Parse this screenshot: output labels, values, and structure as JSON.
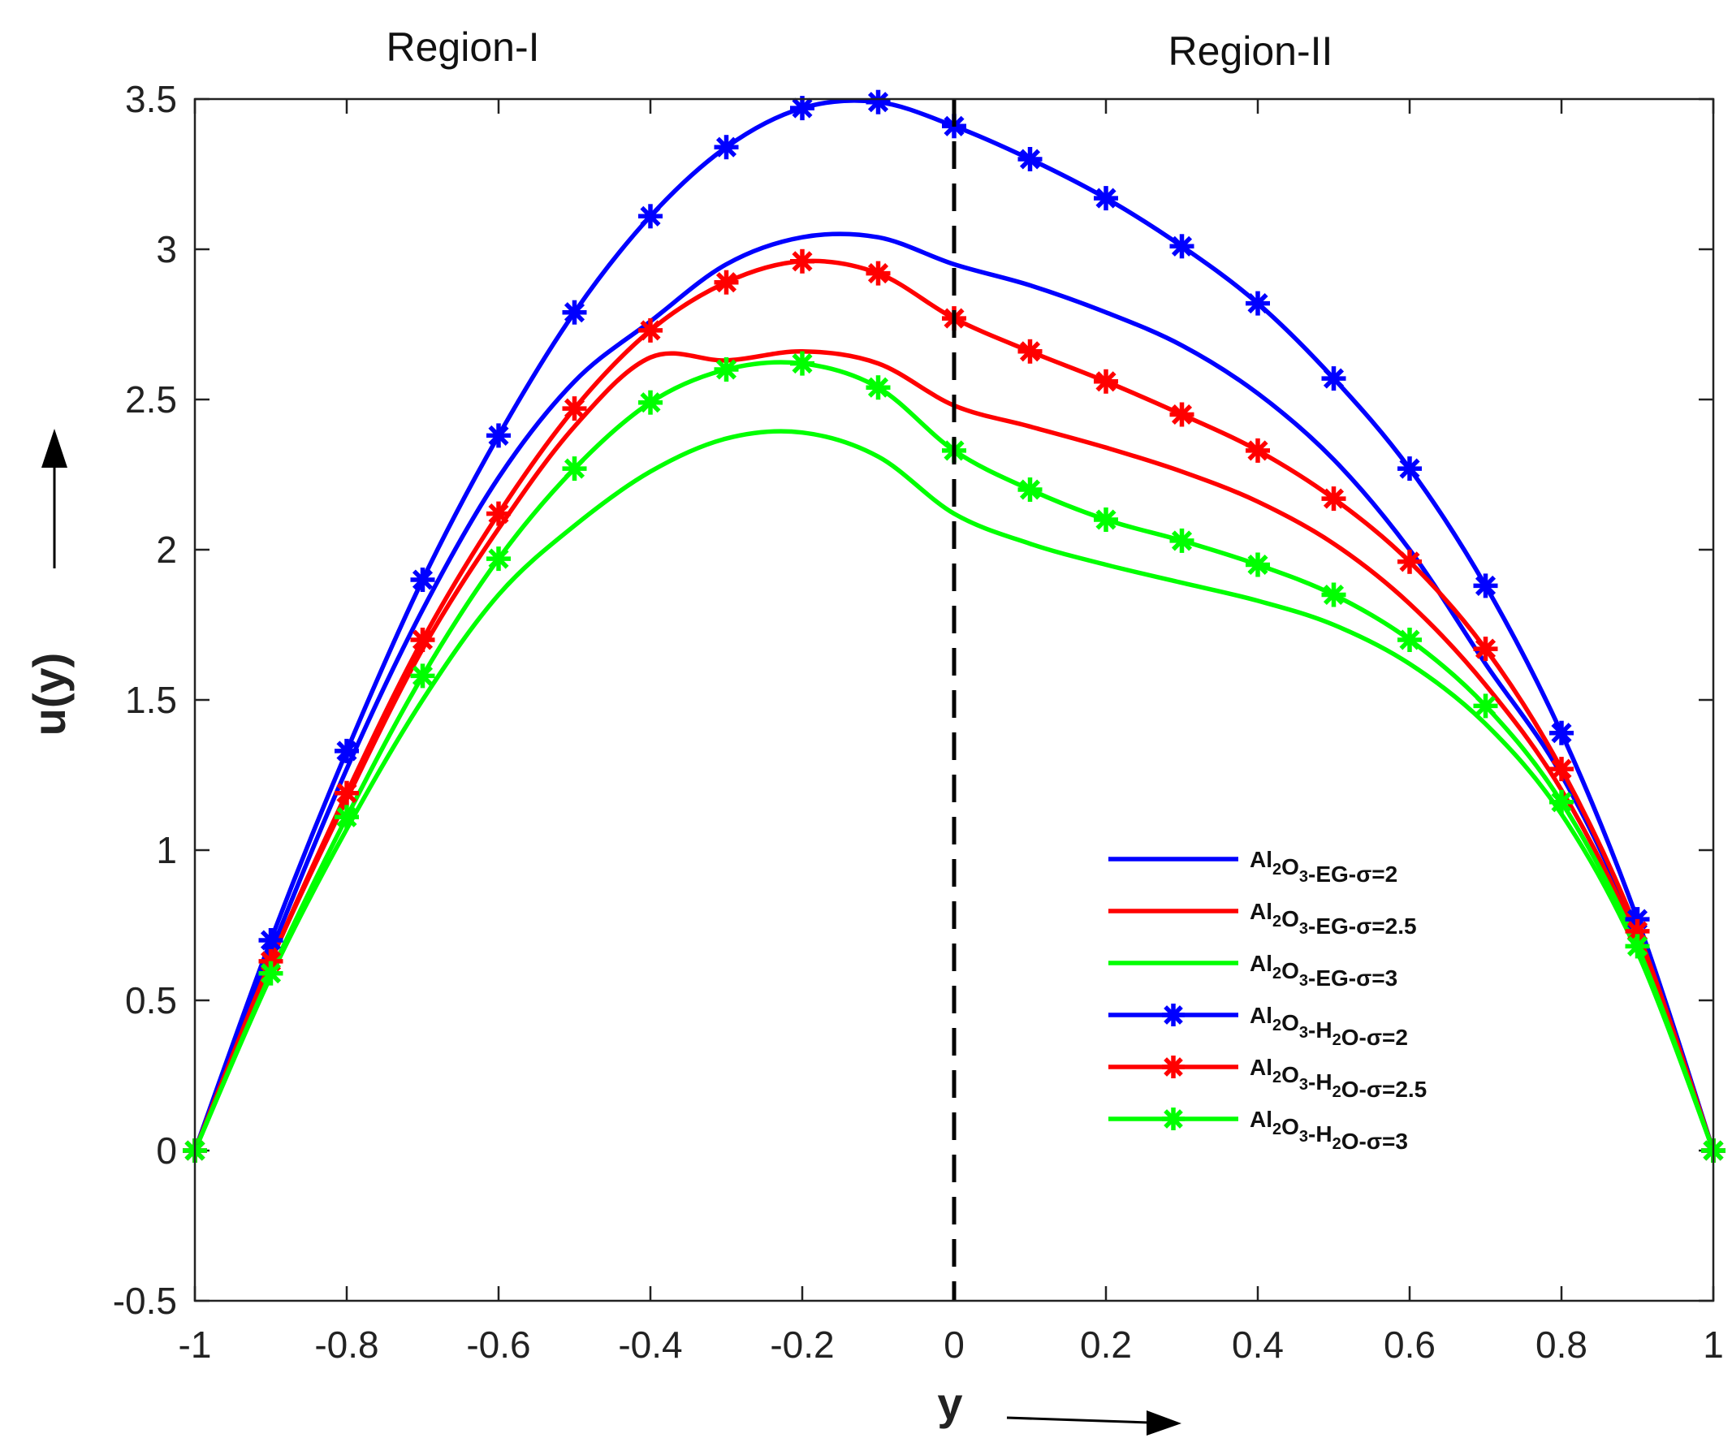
{
  "chart_data": {
    "type": "line",
    "xlabel": "y",
    "ylabel": "u(y)",
    "xlim": [
      -1,
      1
    ],
    "ylim": [
      -0.5,
      3.5
    ],
    "xticks": [
      -1,
      -0.8,
      -0.6,
      -0.4,
      -0.2,
      0,
      0.2,
      0.4,
      0.6,
      0.8,
      1
    ],
    "xtick_labels": [
      "-1",
      "-0.8",
      "-0.6",
      "-0.4",
      "-0.2",
      "0",
      "0.2",
      "0.4",
      "0.6",
      "0.8",
      "1"
    ],
    "yticks": [
      -0.5,
      0,
      0.5,
      1,
      1.5,
      2,
      2.5,
      3,
      3.5
    ],
    "ytick_labels": [
      "-0.5",
      "0",
      "0.5",
      "1",
      "1.5",
      "2",
      "2.5",
      "3",
      "3.5"
    ],
    "annotations": {
      "region_1": "Region-I",
      "region_2": "Region-II"
    },
    "interface_x": 0,
    "x": [
      -1,
      -0.9,
      -0.8,
      -0.7,
      -0.6,
      -0.5,
      -0.4,
      -0.3,
      -0.2,
      -0.1,
      0,
      0.1,
      0.2,
      0.3,
      0.4,
      0.5,
      0.6,
      0.7,
      0.8,
      0.9,
      1
    ],
    "series": [
      {
        "name": "Al2O3-EG-σ=2",
        "legend_parts": [
          "Al",
          "2",
          "O",
          "3",
          "-EG-",
          "σ",
          "=2"
        ],
        "color": "#0000ff",
        "marker": "none",
        "values": [
          0,
          0.66,
          1.27,
          1.8,
          2.24,
          2.56,
          2.76,
          2.95,
          3.04,
          3.04,
          2.95,
          2.88,
          2.79,
          2.68,
          2.52,
          2.3,
          2.0,
          1.62,
          1.25,
          0.72,
          0
        ]
      },
      {
        "name": "Al2O3-EG-σ=2.5",
        "legend_parts": [
          "Al",
          "2",
          "O",
          "3",
          "-EG-",
          "σ",
          "=2.5"
        ],
        "color": "#ff0000",
        "marker": "none",
        "values": [
          0,
          0.63,
          1.17,
          1.67,
          2.07,
          2.41,
          2.64,
          2.63,
          2.66,
          2.62,
          2.48,
          2.41,
          2.34,
          2.26,
          2.16,
          2.02,
          1.82,
          1.55,
          1.2,
          0.7,
          0
        ]
      },
      {
        "name": "Al2O3-EG-σ=3",
        "legend_parts": [
          "Al",
          "2",
          "O",
          "3",
          "-EG-",
          "σ",
          "=3"
        ],
        "color": "#00ff00",
        "marker": "none",
        "values": [
          0,
          0.58,
          1.07,
          1.5,
          1.85,
          2.08,
          2.26,
          2.37,
          2.39,
          2.31,
          2.12,
          2.02,
          1.95,
          1.89,
          1.83,
          1.75,
          1.62,
          1.42,
          1.12,
          0.66,
          0
        ]
      },
      {
        "name": "Al2O3-H2O-σ=2",
        "legend_parts": [
          "Al",
          "2",
          "O",
          "3",
          "-H",
          "2",
          "O-",
          "σ",
          "=2"
        ],
        "color": "#0000ff",
        "marker": "asterisk",
        "values": [
          0,
          0.7,
          1.33,
          1.9,
          2.38,
          2.79,
          3.11,
          3.34,
          3.47,
          3.49,
          3.41,
          3.3,
          3.17,
          3.01,
          2.82,
          2.57,
          2.27,
          1.88,
          1.39,
          0.77,
          0
        ]
      },
      {
        "name": "Al2O3-H2O-σ=2.5",
        "legend_parts": [
          "Al",
          "2",
          "O",
          "3",
          "-H",
          "2",
          "O-",
          "σ",
          "=2.5"
        ],
        "color": "#ff0000",
        "marker": "asterisk",
        "values": [
          0,
          0.63,
          1.19,
          1.7,
          2.12,
          2.47,
          2.73,
          2.89,
          2.96,
          2.92,
          2.77,
          2.66,
          2.56,
          2.45,
          2.33,
          2.17,
          1.96,
          1.67,
          1.27,
          0.73,
          0
        ]
      },
      {
        "name": "Al2O3-H2O-σ=3",
        "legend_parts": [
          "Al",
          "2",
          "O",
          "3",
          "-H",
          "2",
          "O-",
          "σ",
          "=3"
        ],
        "color": "#00ff00",
        "marker": "asterisk",
        "values": [
          0,
          0.59,
          1.11,
          1.58,
          1.97,
          2.27,
          2.49,
          2.6,
          2.62,
          2.54,
          2.33,
          2.2,
          2.1,
          2.03,
          1.95,
          1.85,
          1.7,
          1.48,
          1.16,
          0.68,
          0
        ]
      }
    ]
  }
}
